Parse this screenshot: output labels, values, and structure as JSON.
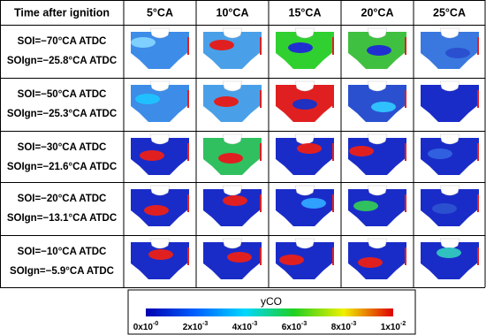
{
  "header": {
    "corner": "Time after ignition",
    "columns": [
      "5°CA",
      "10°CA",
      "15°CA",
      "20°CA",
      "25°CA"
    ]
  },
  "rows": [
    {
      "soi": "SOI=−70°CA ATDC",
      "soign": "SOIgn=−25.8°CA ATDC"
    },
    {
      "soi": "SOI=−50°CA ATDC",
      "soign": "SOIgn=−25.3°CA ATDC"
    },
    {
      "soi": "SOI=−30°CA ATDC",
      "soign": "SOIgn=−21.6°CA ATDC"
    },
    {
      "soi": "SOI=−20°CA ATDC",
      "soign": "SOIgn=−13.1°CA ATDC"
    },
    {
      "soi": "SOI=−10°CA ATDC",
      "soign": "SOIgn=−5.9°CA ATDC"
    }
  ],
  "colorbar": {
    "title": "yCO",
    "ticks": [
      {
        "base": "0x10",
        "exp": "-0"
      },
      {
        "base": "2x10",
        "exp": "-3"
      },
      {
        "base": "4x10",
        "exp": "-3"
      },
      {
        "base": "6x10",
        "exp": "-3"
      },
      {
        "base": "8x10",
        "exp": "-3"
      },
      {
        "base": "1x10",
        "exp": "-2"
      }
    ]
  }
}
